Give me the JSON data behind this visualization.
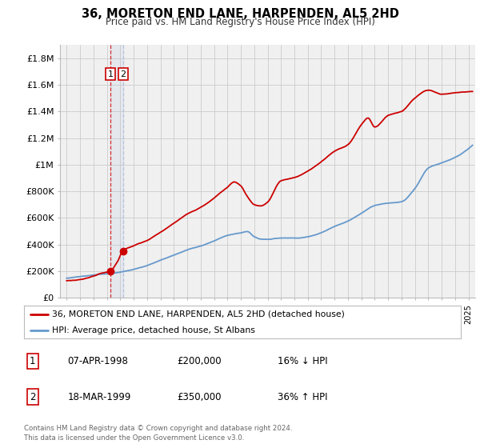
{
  "title": "36, MORETON END LANE, HARPENDEN, AL5 2HD",
  "subtitle": "Price paid vs. HM Land Registry's House Price Index (HPI)",
  "legend_line1": "36, MORETON END LANE, HARPENDEN, AL5 2HD (detached house)",
  "legend_line2": "HPI: Average price, detached house, St Albans",
  "transaction1_date": "07-APR-1998",
  "transaction1_price": "£200,000",
  "transaction1_hpi": "16% ↓ HPI",
  "transaction2_date": "18-MAR-1999",
  "transaction2_price": "£350,000",
  "transaction2_hpi": "36% ↑ HPI",
  "footer1": "Contains HM Land Registry data © Crown copyright and database right 2024.",
  "footer2": "This data is licensed under the Open Government Licence v3.0.",
  "red_color": "#cc0000",
  "blue_color": "#6699cc",
  "bg_color": "#f0f0f0",
  "grid_color": "#cccccc",
  "marker1_x": 1998.27,
  "marker1_y": 200000,
  "marker2_x": 1999.21,
  "marker2_y": 350000,
  "vline1_x": 1998.27,
  "vline2_x": 1999.21,
  "ylim_max": 1900000,
  "yticks": [
    0,
    200000,
    400000,
    600000,
    800000,
    1000000,
    1200000,
    1400000,
    1600000,
    1800000
  ],
  "ytick_labels": [
    "£0",
    "£200K",
    "£400K",
    "£600K",
    "£800K",
    "£1M",
    "£1.2M",
    "£1.4M",
    "£1.6M",
    "£1.8M"
  ],
  "xlim_min": 1994.5,
  "xlim_max": 2025.5
}
